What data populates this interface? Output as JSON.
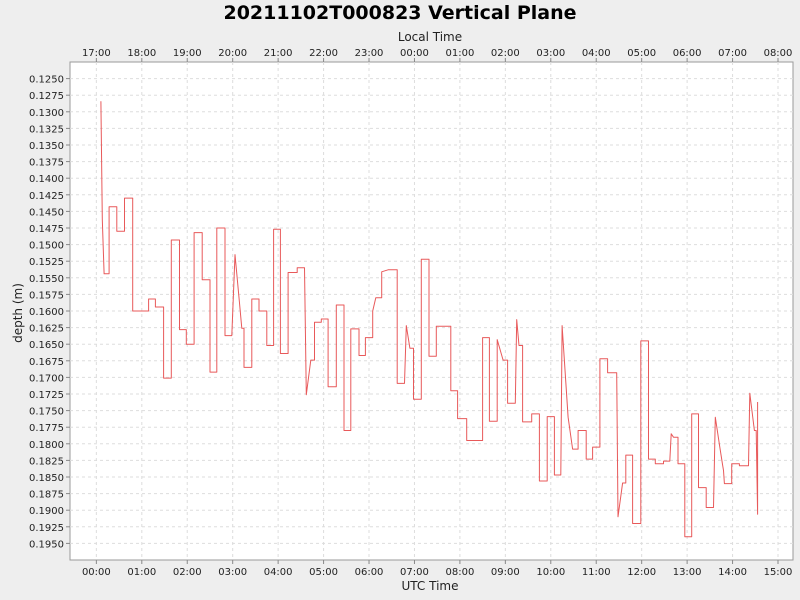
{
  "chart_data": {
    "type": "line",
    "title": "20211102T000823 Vertical Plane",
    "xlabel": "UTC Time",
    "x2label": "Local Time",
    "ylabel": "depth (m)",
    "inverted_y": true,
    "grid": true,
    "legend": "none",
    "line_color": "#e8595a",
    "xlim": [
      -0.58,
      15.33
    ],
    "ylim": [
      0.1225,
      0.1975
    ],
    "xticks": [
      {
        "v": 0,
        "label": "00:00"
      },
      {
        "v": 1,
        "label": "01:00"
      },
      {
        "v": 2,
        "label": "02:00"
      },
      {
        "v": 3,
        "label": "03:00"
      },
      {
        "v": 4,
        "label": "04:00"
      },
      {
        "v": 5,
        "label": "05:00"
      },
      {
        "v": 6,
        "label": "06:00"
      },
      {
        "v": 7,
        "label": "07:00"
      },
      {
        "v": 8,
        "label": "08:00"
      },
      {
        "v": 9,
        "label": "09:00"
      },
      {
        "v": 10,
        "label": "10:00"
      },
      {
        "v": 11,
        "label": "11:00"
      },
      {
        "v": 12,
        "label": "12:00"
      },
      {
        "v": 13,
        "label": "13:00"
      },
      {
        "v": 14,
        "label": "14:00"
      },
      {
        "v": 15,
        "label": "15:00"
      }
    ],
    "x2ticks": [
      {
        "v": 0,
        "label": "17:00"
      },
      {
        "v": 1,
        "label": "18:00"
      },
      {
        "v": 2,
        "label": "19:00"
      },
      {
        "v": 3,
        "label": "20:00"
      },
      {
        "v": 4,
        "label": "21:00"
      },
      {
        "v": 5,
        "label": "22:00"
      },
      {
        "v": 6,
        "label": "23:00"
      },
      {
        "v": 7,
        "label": "00:00"
      },
      {
        "v": 8,
        "label": "01:00"
      },
      {
        "v": 9,
        "label": "02:00"
      },
      {
        "v": 10,
        "label": "03:00"
      },
      {
        "v": 11,
        "label": "04:00"
      },
      {
        "v": 12,
        "label": "05:00"
      },
      {
        "v": 13,
        "label": "06:00"
      },
      {
        "v": 14,
        "label": "07:00"
      },
      {
        "v": 15,
        "label": "08:00"
      }
    ],
    "yticks": [
      {
        "v": 0.125,
        "label": "0.1250"
      },
      {
        "v": 0.1275,
        "label": "0.1275"
      },
      {
        "v": 0.13,
        "label": "0.1300"
      },
      {
        "v": 0.1325,
        "label": "0.1325"
      },
      {
        "v": 0.135,
        "label": "0.1350"
      },
      {
        "v": 0.1375,
        "label": "0.1375"
      },
      {
        "v": 0.14,
        "label": "0.1400"
      },
      {
        "v": 0.1425,
        "label": "0.1425"
      },
      {
        "v": 0.145,
        "label": "0.1450"
      },
      {
        "v": 0.1475,
        "label": "0.1475"
      },
      {
        "v": 0.15,
        "label": "0.1500"
      },
      {
        "v": 0.1525,
        "label": "0.1525"
      },
      {
        "v": 0.155,
        "label": "0.1550"
      },
      {
        "v": 0.1575,
        "label": "0.1575"
      },
      {
        "v": 0.16,
        "label": "0.1600"
      },
      {
        "v": 0.1625,
        "label": "0.1625"
      },
      {
        "v": 0.165,
        "label": "0.1650"
      },
      {
        "v": 0.1675,
        "label": "0.1675"
      },
      {
        "v": 0.17,
        "label": "0.1700"
      },
      {
        "v": 0.1725,
        "label": "0.1725"
      },
      {
        "v": 0.175,
        "label": "0.1750"
      },
      {
        "v": 0.1775,
        "label": "0.1775"
      },
      {
        "v": 0.18,
        "label": "0.1800"
      },
      {
        "v": 0.1825,
        "label": "0.1825"
      },
      {
        "v": 0.185,
        "label": "0.1850"
      },
      {
        "v": 0.1875,
        "label": "0.1875"
      },
      {
        "v": 0.19,
        "label": "0.1900"
      },
      {
        "v": 0.1925,
        "label": "0.1925"
      },
      {
        "v": 0.195,
        "label": "0.1950"
      }
    ],
    "series": [
      {
        "points": [
          [
            0.1,
            0.1284
          ],
          [
            0.13,
            0.1462
          ],
          [
            0.17,
            0.1544
          ],
          [
            0.28,
            0.1544
          ],
          [
            0.28,
            0.1443
          ],
          [
            0.45,
            0.1443
          ],
          [
            0.45,
            0.148
          ],
          [
            0.62,
            0.148
          ],
          [
            0.62,
            0.143
          ],
          [
            0.8,
            0.143
          ],
          [
            0.8,
            0.16
          ],
          [
            1.15,
            0.16
          ],
          [
            1.15,
            0.1582
          ],
          [
            1.3,
            0.1582
          ],
          [
            1.3,
            0.1594
          ],
          [
            1.48,
            0.1594
          ],
          [
            1.48,
            0.1701
          ],
          [
            1.65,
            0.1701
          ],
          [
            1.65,
            0.1493
          ],
          [
            1.83,
            0.1493
          ],
          [
            1.83,
            0.1628
          ],
          [
            1.98,
            0.1628
          ],
          [
            1.98,
            0.165
          ],
          [
            2.15,
            0.165
          ],
          [
            2.15,
            0.1482
          ],
          [
            2.33,
            0.1482
          ],
          [
            2.33,
            0.1553
          ],
          [
            2.5,
            0.1553
          ],
          [
            2.5,
            0.1692
          ],
          [
            2.65,
            0.1692
          ],
          [
            2.65,
            0.1475
          ],
          [
            2.83,
            0.1475
          ],
          [
            2.83,
            0.1637
          ],
          [
            2.98,
            0.1637
          ],
          [
            3.05,
            0.1515
          ],
          [
            3.15,
            0.1588
          ],
          [
            3.2,
            0.1626
          ],
          [
            3.25,
            0.1626
          ],
          [
            3.25,
            0.1685
          ],
          [
            3.42,
            0.1685
          ],
          [
            3.42,
            0.1582
          ],
          [
            3.58,
            0.1582
          ],
          [
            3.58,
            0.16
          ],
          [
            3.75,
            0.16
          ],
          [
            3.75,
            0.1652
          ],
          [
            3.9,
            0.1652
          ],
          [
            3.9,
            0.1477
          ],
          [
            4.05,
            0.1477
          ],
          [
            4.05,
            0.1664
          ],
          [
            4.22,
            0.1664
          ],
          [
            4.22,
            0.1542
          ],
          [
            4.42,
            0.1542
          ],
          [
            4.42,
            0.1535
          ],
          [
            4.58,
            0.1535
          ],
          [
            4.62,
            0.1726
          ],
          [
            4.72,
            0.1674
          ],
          [
            4.8,
            0.1674
          ],
          [
            4.8,
            0.1617
          ],
          [
            4.95,
            0.1617
          ],
          [
            4.95,
            0.1612
          ],
          [
            5.1,
            0.1612
          ],
          [
            5.1,
            0.1714
          ],
          [
            5.28,
            0.1714
          ],
          [
            5.28,
            0.1591
          ],
          [
            5.45,
            0.1591
          ],
          [
            5.45,
            0.178
          ],
          [
            5.6,
            0.178
          ],
          [
            5.6,
            0.1627
          ],
          [
            5.78,
            0.1627
          ],
          [
            5.78,
            0.1667
          ],
          [
            5.92,
            0.1667
          ],
          [
            5.92,
            0.164
          ],
          [
            6.08,
            0.164
          ],
          [
            6.08,
            0.16
          ],
          [
            6.15,
            0.158
          ],
          [
            6.28,
            0.158
          ],
          [
            6.28,
            0.1541
          ],
          [
            6.42,
            0.1538
          ],
          [
            6.62,
            0.1538
          ],
          [
            6.62,
            0.1709
          ],
          [
            6.78,
            0.1709
          ],
          [
            6.82,
            0.1622
          ],
          [
            6.9,
            0.1656
          ],
          [
            6.98,
            0.1656
          ],
          [
            6.98,
            0.1733
          ],
          [
            7.15,
            0.1733
          ],
          [
            7.15,
            0.1522
          ],
          [
            7.32,
            0.1522
          ],
          [
            7.32,
            0.1668
          ],
          [
            7.48,
            0.1668
          ],
          [
            7.48,
            0.1623
          ],
          [
            7.8,
            0.1623
          ],
          [
            7.8,
            0.172
          ],
          [
            7.95,
            0.172
          ],
          [
            7.95,
            0.1762
          ],
          [
            8.15,
            0.1762
          ],
          [
            8.15,
            0.1795
          ],
          [
            8.5,
            0.1795
          ],
          [
            8.5,
            0.164
          ],
          [
            8.65,
            0.164
          ],
          [
            8.65,
            0.1766
          ],
          [
            8.82,
            0.1766
          ],
          [
            8.82,
            0.1643
          ],
          [
            8.95,
            0.1674
          ],
          [
            9.05,
            0.1674
          ],
          [
            9.05,
            0.1739
          ],
          [
            9.22,
            0.1739
          ],
          [
            9.25,
            0.1613
          ],
          [
            9.3,
            0.1652
          ],
          [
            9.38,
            0.1652
          ],
          [
            9.38,
            0.1767
          ],
          [
            9.58,
            0.1767
          ],
          [
            9.58,
            0.1755
          ],
          [
            9.75,
            0.1755
          ],
          [
            9.75,
            0.1856
          ],
          [
            9.92,
            0.1856
          ],
          [
            9.92,
            0.1759
          ],
          [
            10.08,
            0.1759
          ],
          [
            10.08,
            0.1847
          ],
          [
            10.22,
            0.1847
          ],
          [
            10.25,
            0.1622
          ],
          [
            10.38,
            0.176
          ],
          [
            10.48,
            0.1808
          ],
          [
            10.6,
            0.1808
          ],
          [
            10.6,
            0.178
          ],
          [
            10.78,
            0.178
          ],
          [
            10.78,
            0.1823
          ],
          [
            10.92,
            0.1823
          ],
          [
            10.92,
            0.1805
          ],
          [
            11.08,
            0.1805
          ],
          [
            11.08,
            0.1672
          ],
          [
            11.25,
            0.1672
          ],
          [
            11.25,
            0.1693
          ],
          [
            11.45,
            0.1693
          ],
          [
            11.48,
            0.191
          ],
          [
            11.58,
            0.1859
          ],
          [
            11.65,
            0.1859
          ],
          [
            11.65,
            0.1817
          ],
          [
            11.8,
            0.1817
          ],
          [
            11.8,
            0.192
          ],
          [
            11.98,
            0.192
          ],
          [
            11.98,
            0.1645
          ],
          [
            12.15,
            0.1645
          ],
          [
            12.15,
            0.1823
          ],
          [
            12.3,
            0.1823
          ],
          [
            12.3,
            0.183
          ],
          [
            12.48,
            0.183
          ],
          [
            12.48,
            0.1826
          ],
          [
            12.62,
            0.1826
          ],
          [
            12.65,
            0.1785
          ],
          [
            12.7,
            0.179
          ],
          [
            12.8,
            0.179
          ],
          [
            12.8,
            0.183
          ],
          [
            12.95,
            0.183
          ],
          [
            12.95,
            0.194
          ],
          [
            13.1,
            0.194
          ],
          [
            13.1,
            0.1755
          ],
          [
            13.25,
            0.1755
          ],
          [
            13.25,
            0.1866
          ],
          [
            13.42,
            0.1866
          ],
          [
            13.42,
            0.1896
          ],
          [
            13.58,
            0.1896
          ],
          [
            13.62,
            0.176
          ],
          [
            13.72,
            0.1805
          ],
          [
            13.78,
            0.1832
          ],
          [
            13.8,
            0.184
          ],
          [
            13.82,
            0.186
          ],
          [
            13.98,
            0.186
          ],
          [
            13.98,
            0.183
          ],
          [
            14.15,
            0.183
          ],
          [
            14.15,
            0.1833
          ],
          [
            14.35,
            0.1833
          ],
          [
            14.38,
            0.1724
          ],
          [
            14.48,
            0.178
          ],
          [
            14.52,
            0.178
          ],
          [
            14.55,
            0.1906
          ],
          [
            14.55,
            0.1737
          ]
        ]
      }
    ]
  }
}
